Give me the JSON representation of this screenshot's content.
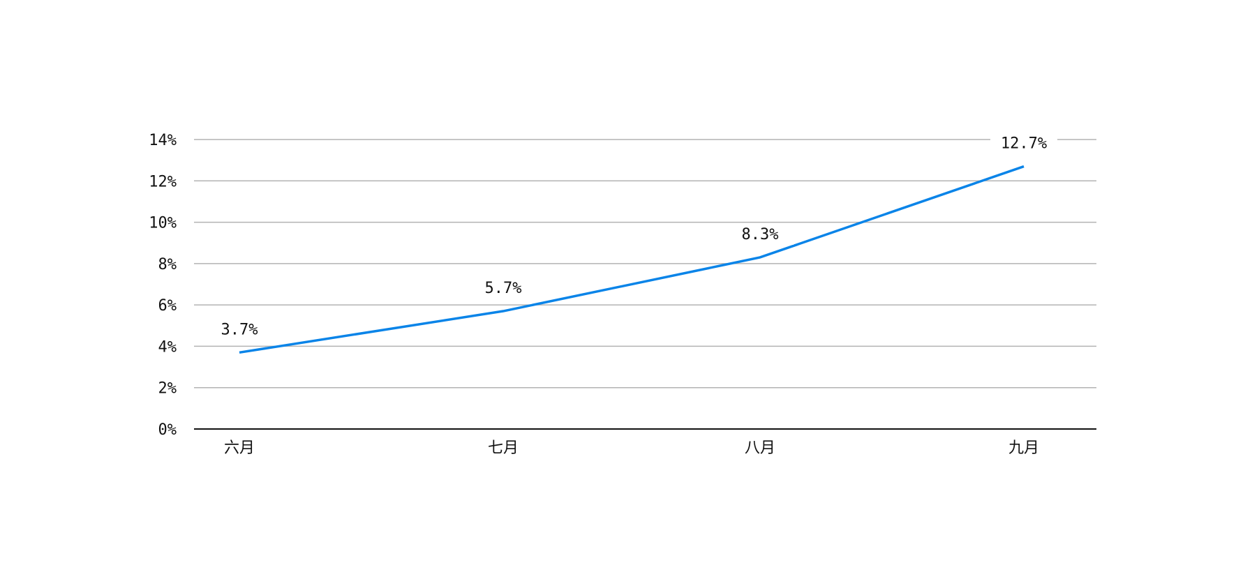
{
  "chart_data": {
    "type": "line",
    "title": "",
    "xlabel": "",
    "ylabel": "",
    "categories": [
      "六月",
      "七月",
      "八月",
      "九月"
    ],
    "values": [
      3.7,
      5.7,
      8.3,
      12.7
    ],
    "data_labels": [
      "3.7%",
      "5.7%",
      "8.3%",
      "12.7%"
    ],
    "ylim": [
      0,
      14
    ],
    "yticks": [
      0,
      2,
      4,
      6,
      8,
      10,
      12,
      14
    ],
    "ytick_labels": [
      "0%",
      "2%",
      "4%",
      "6%",
      "8%",
      "10%",
      "12%",
      "14%"
    ],
    "grid": true,
    "legend": "none",
    "colors": {
      "line": "#0a84e8",
      "grid": "#b3b3b3",
      "axis": "#111111"
    }
  }
}
